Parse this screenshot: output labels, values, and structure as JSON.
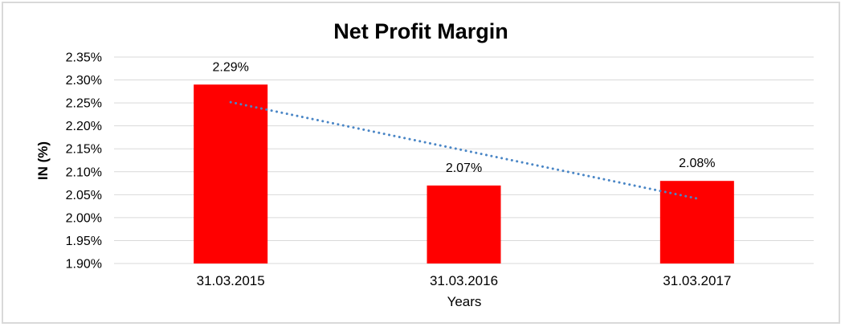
{
  "frame": {
    "border_color": "#d9d9d9",
    "background": "#ffffff"
  },
  "chart_data": {
    "type": "bar",
    "title": "Net Profit Margin",
    "categories": [
      "31.03.2015",
      "31.03.2016",
      "31.03.2017"
    ],
    "values": [
      2.29,
      2.07,
      2.08
    ],
    "data_labels": [
      "2.29%",
      "2.07%",
      "2.08%"
    ],
    "xlabel": "Years",
    "ylabel": "IN (%)",
    "ylim": [
      1.9,
      2.35
    ],
    "ytick_step": 0.05,
    "ytick_labels": [
      "1.90%",
      "1.95%",
      "2.00%",
      "2.05%",
      "2.10%",
      "2.15%",
      "2.20%",
      "2.25%",
      "2.30%",
      "2.35%"
    ],
    "grid": true,
    "gridline_color": "#d9d9d9",
    "legend": false,
    "bar_color": "#ff0000",
    "text_color": "#000000",
    "trendline": {
      "type": "linear",
      "style": "dotted",
      "color": "#4a86c6"
    }
  }
}
